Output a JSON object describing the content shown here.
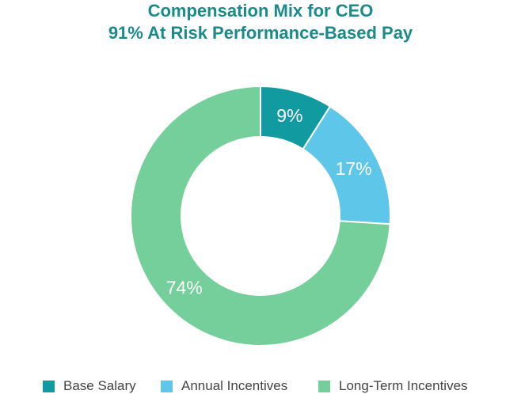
{
  "chart_data": {
    "type": "pie",
    "title": "Compensation Mix for CEO",
    "subtitle": "91% At Risk Performance-Based Pay",
    "categories": [
      "Base Salary",
      "Annual Incentives",
      "Long-Term Incentives"
    ],
    "values": [
      9,
      17,
      74
    ],
    "value_labels": [
      "9%",
      "17%",
      "74%"
    ],
    "colors": [
      "#119aa0",
      "#5ec6e8",
      "#74cf9a"
    ],
    "donut": true,
    "legend_position": "bottom"
  }
}
